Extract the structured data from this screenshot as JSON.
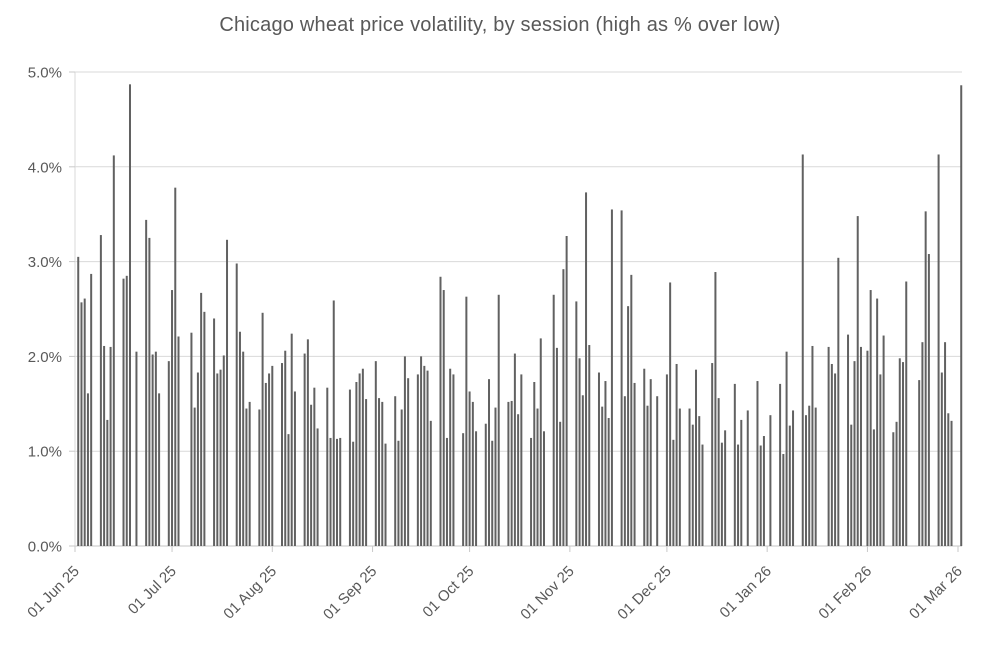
{
  "title": "Chicago wheat price volatility, by session (high as % over low)",
  "chart_data": {
    "type": "bar",
    "title": "Chicago wheat price volatility, by session (high as % over low)",
    "xlabel": "",
    "ylabel": "",
    "ylim": [
      0,
      5
    ],
    "y_tick_labels": [
      "0.0%",
      "1.0%",
      "2.0%",
      "3.0%",
      "4.0%",
      "5.0%"
    ],
    "grid": "horizontal",
    "legend_position": "none",
    "bar_color": "#616161",
    "grid_color": "#d9d9d9",
    "tick_color": "#c9c9c9",
    "text_color": "#595959",
    "x_axis_type": "date",
    "x_ticks": [
      {
        "label": "01 Jun 25",
        "day": 0
      },
      {
        "label": "01 Jul 25",
        "day": 30
      },
      {
        "label": "01 Aug 25",
        "day": 61
      },
      {
        "label": "01 Sep 25",
        "day": 92
      },
      {
        "label": "01 Oct 25",
        "day": 122
      },
      {
        "label": "01 Nov 25",
        "day": 153
      },
      {
        "label": "01 Dec 25",
        "day": 183
      },
      {
        "label": "01 Jan 26",
        "day": 214
      },
      {
        "label": "01 Feb 26",
        "day": 245
      },
      {
        "label": "01 Mar 26",
        "day": 273
      }
    ],
    "unit": "percent_high_over_low_per_session",
    "session_clusters": [
      {
        "start_day": 1,
        "values": [
          3.05,
          2.57,
          2.61,
          1.61,
          2.87
        ]
      },
      {
        "start_day": 8,
        "values": [
          3.28,
          2.11,
          1.33,
          2.1,
          4.12
        ]
      },
      {
        "start_day": 15,
        "values": [
          2.82,
          2.85,
          4.87
        ]
      },
      {
        "start_day": 19,
        "values": [
          2.05
        ]
      },
      {
        "start_day": 22,
        "values": [
          3.44,
          3.25,
          2.02,
          2.05,
          1.61
        ]
      },
      {
        "start_day": 29,
        "values": [
          1.95,
          2.7,
          3.78,
          2.21
        ]
      },
      {
        "start_day": 36,
        "values": [
          2.25,
          1.46,
          1.83,
          2.67,
          2.47
        ]
      },
      {
        "start_day": 43,
        "values": [
          2.4,
          1.82,
          1.86,
          2.01,
          3.23
        ]
      },
      {
        "start_day": 50,
        "values": [
          2.98,
          2.26,
          2.05,
          1.45,
          1.52
        ]
      },
      {
        "start_day": 57,
        "values": [
          1.44,
          2.46,
          1.72,
          1.82,
          1.9
        ]
      },
      {
        "start_day": 64,
        "values": [
          1.93,
          2.06,
          1.18,
          2.24,
          1.63
        ]
      },
      {
        "start_day": 71,
        "values": [
          2.03,
          2.18,
          1.49,
          1.67,
          1.24
        ]
      },
      {
        "start_day": 78,
        "values": [
          1.67,
          1.14,
          2.59,
          1.13,
          1.14
        ]
      },
      {
        "start_day": 85,
        "values": [
          1.65,
          1.1,
          1.73,
          1.82,
          1.87,
          1.55
        ]
      },
      {
        "start_day": 93,
        "values": [
          1.95,
          1.56,
          1.52,
          1.08
        ]
      },
      {
        "start_day": 99,
        "values": [
          1.58,
          1.11,
          1.44,
          2.0,
          1.77
        ]
      },
      {
        "start_day": 106,
        "values": [
          1.81,
          2.0,
          1.9,
          1.85,
          1.32
        ]
      },
      {
        "start_day": 113,
        "values": [
          2.84,
          2.7,
          1.14,
          1.87,
          1.81
        ]
      },
      {
        "start_day": 120,
        "values": [
          1.19,
          2.63,
          1.63,
          1.52,
          1.21
        ]
      },
      {
        "start_day": 127,
        "values": [
          1.29,
          1.76,
          1.11,
          1.46,
          2.65
        ]
      },
      {
        "start_day": 134,
        "values": [
          1.52,
          1.53,
          2.03,
          1.39,
          1.81
        ]
      },
      {
        "start_day": 141,
        "values": [
          1.14,
          1.73,
          1.45,
          2.19,
          1.21
        ]
      },
      {
        "start_day": 148,
        "values": [
          2.65,
          2.09,
          1.31,
          2.92,
          3.27
        ]
      },
      {
        "start_day": 155,
        "values": [
          2.58,
          1.98,
          1.59,
          3.73,
          2.12
        ]
      },
      {
        "start_day": 162,
        "values": [
          1.83,
          1.47,
          1.74,
          1.35,
          3.55
        ]
      },
      {
        "start_day": 169,
        "values": [
          3.54,
          1.58,
          2.53,
          2.86,
          1.72
        ]
      },
      {
        "start_day": 176,
        "values": [
          1.87,
          1.48,
          1.76
        ]
      },
      {
        "start_day": 180,
        "values": [
          1.58
        ]
      },
      {
        "start_day": 183,
        "values": [
          1.81,
          2.78,
          1.12,
          1.92,
          1.45
        ]
      },
      {
        "start_day": 190,
        "values": [
          1.45,
          1.28,
          1.86,
          1.37,
          1.07
        ]
      },
      {
        "start_day": 197,
        "values": [
          1.93,
          2.89,
          1.56,
          1.09,
          1.22
        ]
      },
      {
        "start_day": 204,
        "values": [
          1.71,
          1.07,
          1.33
        ]
      },
      {
        "start_day": 208,
        "values": [
          1.43
        ]
      },
      {
        "start_day": 211,
        "values": [
          1.74,
          1.06,
          1.16
        ]
      },
      {
        "start_day": 215,
        "values": [
          1.38
        ]
      },
      {
        "start_day": 218,
        "values": [
          1.71,
          0.97,
          2.05,
          1.27,
          1.43
        ]
      },
      {
        "start_day": 225,
        "values": [
          4.13,
          1.38,
          1.48,
          2.11,
          1.46
        ]
      },
      {
        "start_day": 233,
        "values": [
          2.1,
          1.92,
          1.82,
          3.04
        ]
      },
      {
        "start_day": 239,
        "values": [
          2.23,
          1.28,
          1.95,
          3.48,
          2.1
        ]
      },
      {
        "start_day": 245,
        "values": [
          2.06,
          2.7,
          1.23,
          2.61,
          1.81,
          2.22
        ]
      },
      {
        "start_day": 253,
        "values": [
          1.2,
          1.31,
          1.98,
          1.94,
          2.79
        ]
      },
      {
        "start_day": 261,
        "values": [
          1.75,
          2.15,
          3.53,
          3.08
        ]
      },
      {
        "start_day": 267,
        "values": [
          4.13,
          1.83,
          2.15,
          1.4,
          1.32
        ]
      },
      {
        "start_day": 274,
        "values": [
          4.86
        ]
      }
    ]
  }
}
